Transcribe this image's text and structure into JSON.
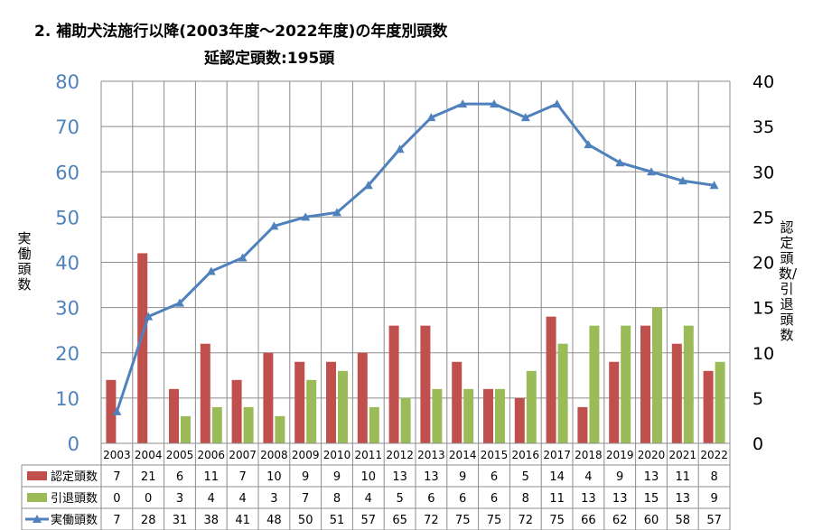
{
  "chart_data": {
    "type": "bar",
    "title": "2. 補助犬法施行以降(2003年度～2022年度)の年度別頭数",
    "subtitle": "延認定頭数:195頭",
    "ylabel_left": "実働頭数",
    "ylabel_right": "認定頭数/引退頭数",
    "ylim_left": [
      0,
      80
    ],
    "ylim_right": [
      0,
      40
    ],
    "yticks_left": [
      "0",
      "10",
      "20",
      "30",
      "40",
      "50",
      "60",
      "70",
      "80"
    ],
    "yticks_right": [
      "0",
      "5",
      "10",
      "15",
      "20",
      "25",
      "30",
      "35",
      "40"
    ],
    "grid": true,
    "legend_placement": "data-table",
    "categories": [
      "2003",
      "2004",
      "2005",
      "2006",
      "2007",
      "2008",
      "2009",
      "2010",
      "2011",
      "2012",
      "2013",
      "2014",
      "2015",
      "2016",
      "2017",
      "2018",
      "2019",
      "2020",
      "2021",
      "2022"
    ],
    "series": [
      {
        "name": "認定頭数",
        "type": "bar",
        "axis": "right",
        "color": "#c0504d",
        "values": [
          7,
          21,
          6,
          11,
          7,
          10,
          9,
          9,
          10,
          13,
          13,
          9,
          6,
          5,
          14,
          4,
          9,
          13,
          11,
          8
        ]
      },
      {
        "name": "引退頭数",
        "type": "bar",
        "axis": "right",
        "color": "#9bbb59",
        "values": [
          0,
          0,
          3,
          4,
          4,
          3,
          7,
          8,
          4,
          5,
          6,
          6,
          6,
          8,
          11,
          13,
          13,
          15,
          13,
          9
        ]
      },
      {
        "name": "実働頭数",
        "type": "line",
        "axis": "left",
        "color": "#4f81bd",
        "marker": "triangle",
        "values": [
          7,
          28,
          31,
          38,
          41,
          48,
          50,
          51,
          57,
          65,
          72,
          75,
          75,
          72,
          75,
          66,
          62,
          60,
          58,
          57
        ]
      }
    ]
  }
}
